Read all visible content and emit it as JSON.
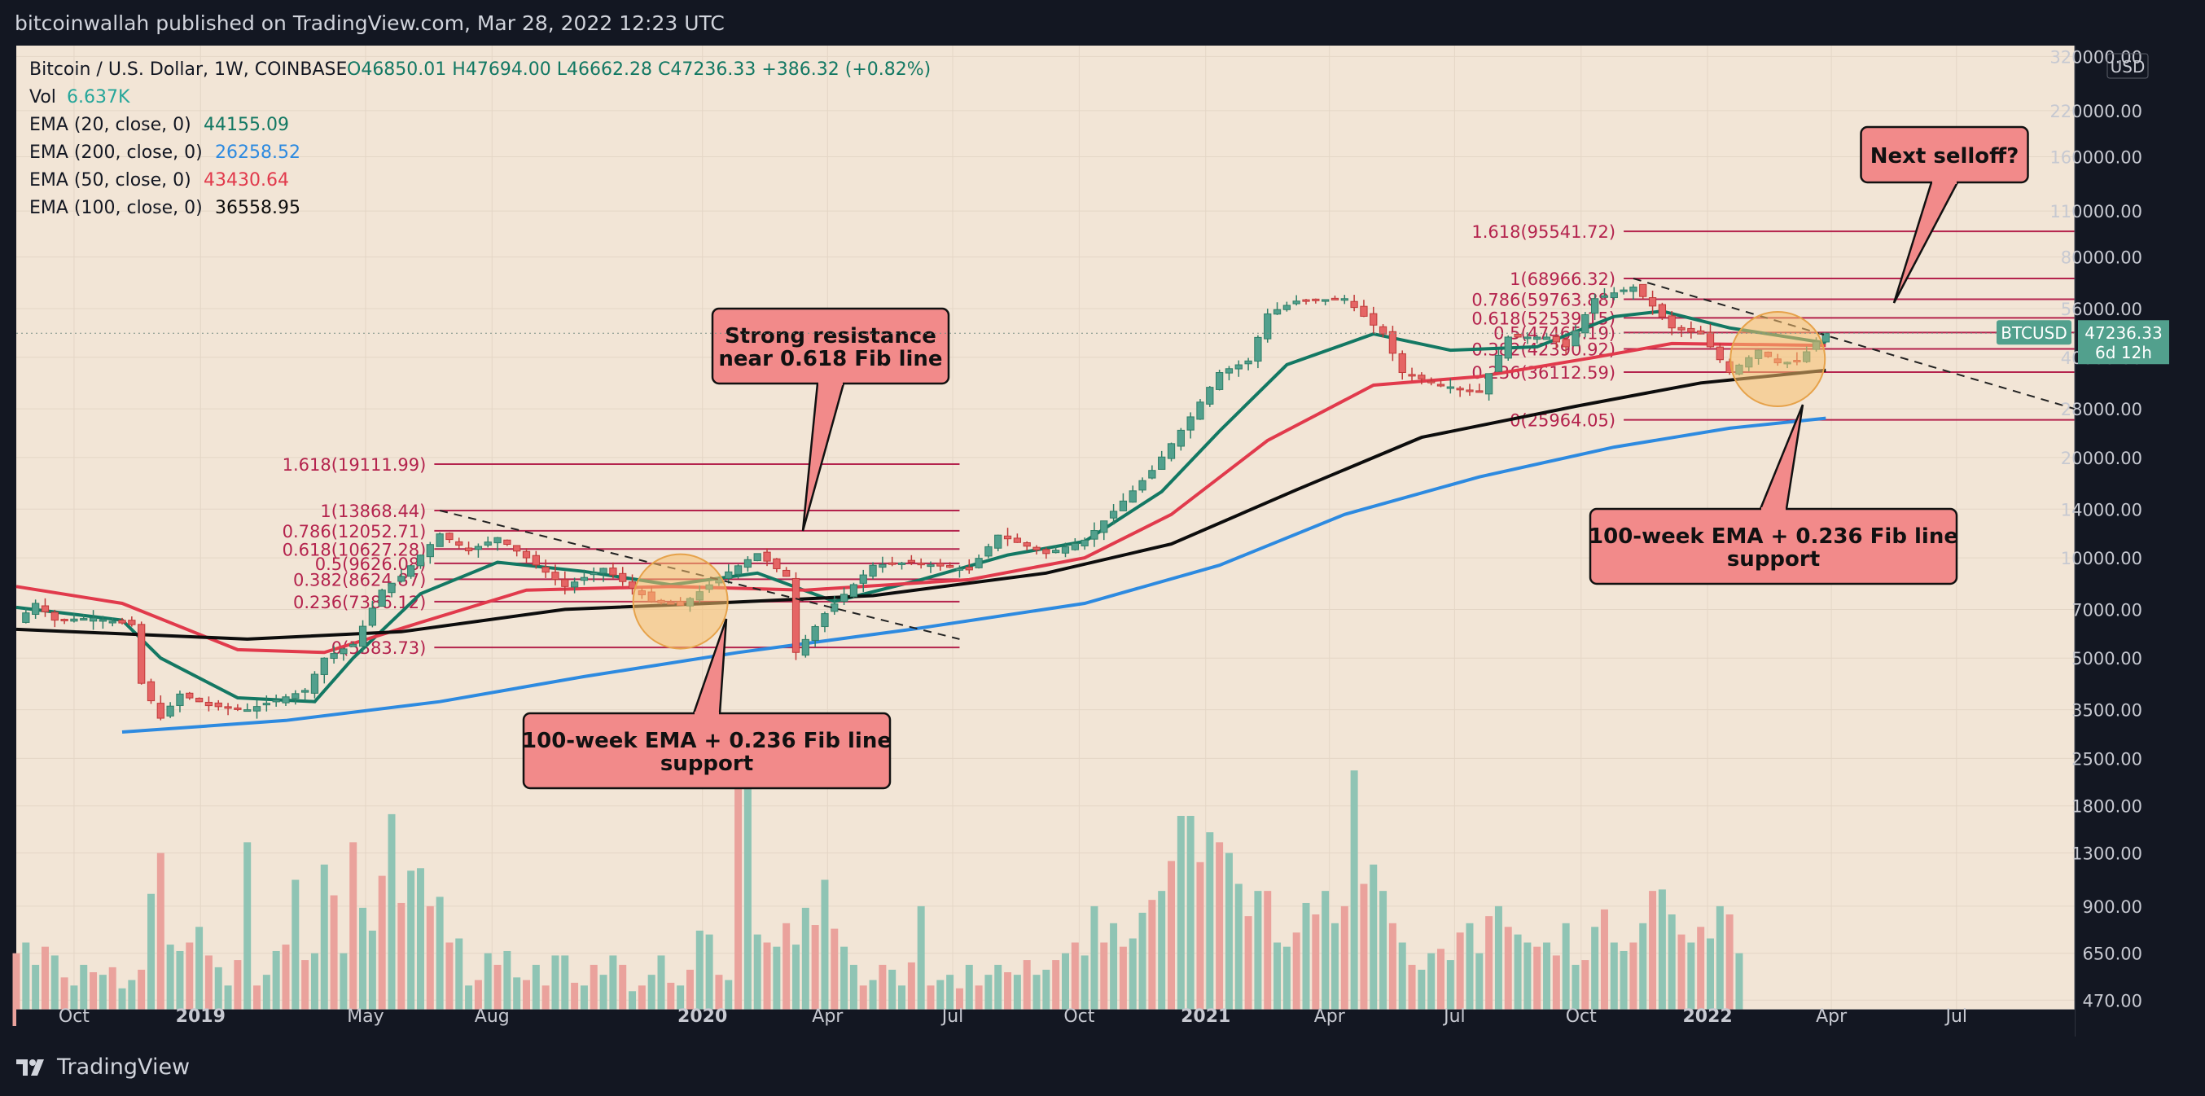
{
  "header": {
    "published": "bitcoinwallah published on TradingView.com, Mar 28, 2022 12:23 UTC"
  },
  "footer": {
    "brand": "TradingView"
  },
  "legend": {
    "symbol": "Bitcoin / U.S. Dollar, 1W, COINBASE",
    "ohlc": "O46850.01 H47694.00 L46662.28 C47236.33 +386.32 (+0.82%)",
    "vol_label": "Vol",
    "vol_value": "6.637K",
    "ema": [
      {
        "label": "EMA (20, close, 0)",
        "value": "44155.09",
        "color": "#137863"
      },
      {
        "label": "EMA (200, close, 0)",
        "value": "26258.52",
        "color": "#2d8ae0"
      },
      {
        "label": "EMA (50, close, 0)",
        "value": "43430.64",
        "color": "#e13a4c"
      },
      {
        "label": "EMA (100, close, 0)",
        "value": "36558.95",
        "color": "#0d0d0d"
      }
    ]
  },
  "price_tag": {
    "symbol": "BTCUSD",
    "price": "47236.33",
    "countdown": "6d 12h"
  },
  "axis": {
    "currency": "USD"
  },
  "annotations": {
    "resistance": [
      "Strong resistance",
      "near 0.618 Fib line"
    ],
    "support_2019": [
      "100-week EMA + 0.236 Fib line",
      "support"
    ],
    "support_2022": [
      "100-week EMA + 0.236 Fib line",
      "support"
    ],
    "selloff": [
      "Next selloff?"
    ]
  },
  "colors": {
    "background": "#f2e5d6",
    "bull": "#52a08d",
    "bear": "#e56565",
    "fib": "#b4234d"
  },
  "chart_data": {
    "type": "candlestick",
    "y_scale": "log",
    "ylim": [
      440,
      345000
    ],
    "y_ticks": [
      {
        "v": 320000,
        "label": "320000.00"
      },
      {
        "v": 220000,
        "label": "220000.00"
      },
      {
        "v": 160000,
        "label": "160000.00"
      },
      {
        "v": 110000,
        "label": "110000.00"
      },
      {
        "v": 80000,
        "label": "80000.00"
      },
      {
        "v": 56000,
        "label": "56000.00"
      },
      {
        "v": 40000,
        "label": "40000.00"
      },
      {
        "v": 28000,
        "label": "28000.00"
      },
      {
        "v": 20000,
        "label": "20000.00"
      },
      {
        "v": 14000,
        "label": "14000.00"
      },
      {
        "v": 10000,
        "label": "10000.00"
      },
      {
        "v": 7000,
        "label": "7000.00"
      },
      {
        "v": 5000,
        "label": "5000.00"
      },
      {
        "v": 3500,
        "label": "3500.00"
      },
      {
        "v": 2500,
        "label": "2500.00"
      },
      {
        "v": 1800,
        "label": "1800.00"
      },
      {
        "v": 1300,
        "label": "1300.00"
      },
      {
        "v": 900,
        "label": "900.00"
      },
      {
        "v": 650,
        "label": "650.00"
      },
      {
        "v": 470,
        "label": "470.00"
      }
    ],
    "x_ticks": [
      {
        "t": "2018-10-01",
        "label": "Oct",
        "bold": false
      },
      {
        "t": "2019-01-01",
        "label": "2019",
        "bold": true
      },
      {
        "t": "2019-05-01",
        "label": "May",
        "bold": false
      },
      {
        "t": "2019-08-01",
        "label": "Aug",
        "bold": false
      },
      {
        "t": "2020-01-01",
        "label": "2020",
        "bold": true
      },
      {
        "t": "2020-04-01",
        "label": "Apr",
        "bold": false
      },
      {
        "t": "2020-07-01",
        "label": "Jul",
        "bold": false
      },
      {
        "t": "2020-10-01",
        "label": "Oct",
        "bold": false
      },
      {
        "t": "2021-01-01",
        "label": "2021",
        "bold": true
      },
      {
        "t": "2021-04-01",
        "label": "Apr",
        "bold": false
      },
      {
        "t": "2021-07-01",
        "label": "Jul",
        "bold": false
      },
      {
        "t": "2021-10-01",
        "label": "Oct",
        "bold": false
      },
      {
        "t": "2022-01-01",
        "label": "2022",
        "bold": true
      },
      {
        "t": "2022-04-01",
        "label": "Apr",
        "bold": false
      },
      {
        "t": "2022-07-01",
        "label": "Jul",
        "bold": false
      }
    ],
    "x_range": [
      "2018-08-20",
      "2022-09-25"
    ],
    "price_path": [
      [
        "2018-08-20",
        6400
      ],
      [
        "2018-09-03",
        7300
      ],
      [
        "2018-09-17",
        6500
      ],
      [
        "2018-10-15",
        6600
      ],
      [
        "2018-11-12",
        6300
      ],
      [
        "2018-11-19",
        4200
      ],
      [
        "2018-12-03",
        3300
      ],
      [
        "2018-12-17",
        3900
      ],
      [
        "2019-01-07",
        3600
      ],
      [
        "2019-02-04",
        3500
      ],
      [
        "2019-03-18",
        4000
      ],
      [
        "2019-04-01",
        5000
      ],
      [
        "2019-04-22",
        5500
      ],
      [
        "2019-05-13",
        8000
      ],
      [
        "2019-05-27",
        8800
      ],
      [
        "2019-06-24",
        11800
      ],
      [
        "2019-07-15",
        10500
      ],
      [
        "2019-08-05",
        11500
      ],
      [
        "2019-08-26",
        10000
      ],
      [
        "2019-09-23",
        8200
      ],
      [
        "2019-10-21",
        9300
      ],
      [
        "2019-11-25",
        7400
      ],
      [
        "2019-12-16",
        7200
      ],
      [
        "2020-01-13",
        8700
      ],
      [
        "2020-02-10",
        10300
      ],
      [
        "2020-03-02",
        8800
      ],
      [
        "2020-03-09",
        5200
      ],
      [
        "2020-03-30",
        6800
      ],
      [
        "2020-05-04",
        9500
      ],
      [
        "2020-06-01",
        9700
      ],
      [
        "2020-07-13",
        9200
      ],
      [
        "2020-08-03",
        11700
      ],
      [
        "2020-09-07",
        10300
      ],
      [
        "2020-10-05",
        11300
      ],
      [
        "2020-10-26",
        13800
      ],
      [
        "2020-11-23",
        18300
      ],
      [
        "2020-12-21",
        26500
      ],
      [
        "2021-01-11",
        36000
      ],
      [
        "2021-02-01",
        39000
      ],
      [
        "2021-02-15",
        54000
      ],
      [
        "2021-03-08",
        59000
      ],
      [
        "2021-04-12",
        60000
      ],
      [
        "2021-05-10",
        47000
      ],
      [
        "2021-05-24",
        36000
      ],
      [
        "2021-06-21",
        33000
      ],
      [
        "2021-07-19",
        31500
      ],
      [
        "2021-08-09",
        46000
      ],
      [
        "2021-09-06",
        46000
      ],
      [
        "2021-09-20",
        43000
      ],
      [
        "2021-10-11",
        60000
      ],
      [
        "2021-11-08",
        65000
      ],
      [
        "2021-11-22",
        57000
      ],
      [
        "2021-12-06",
        49000
      ],
      [
        "2021-12-27",
        47000
      ],
      [
        "2022-01-17",
        36000
      ],
      [
        "2022-02-07",
        42000
      ],
      [
        "2022-02-21",
        38500
      ],
      [
        "2022-03-07",
        38800
      ],
      [
        "2022-03-21",
        44500
      ],
      [
        "2022-03-28",
        47236
      ]
    ],
    "ema_series": [
      {
        "name": "EMA (20, close, 0)",
        "color": "#137863",
        "points": [
          [
            "2018-08-20",
            7100
          ],
          [
            "2018-11-05",
            6500
          ],
          [
            "2018-12-03",
            5000
          ],
          [
            "2019-01-28",
            3800
          ],
          [
            "2019-03-25",
            3700
          ],
          [
            "2019-04-22",
            5000
          ],
          [
            "2019-06-10",
            7800
          ],
          [
            "2019-08-05",
            9700
          ],
          [
            "2019-10-07",
            9100
          ],
          [
            "2019-12-09",
            8300
          ],
          [
            "2020-02-10",
            9000
          ],
          [
            "2020-04-06",
            7400
          ],
          [
            "2020-06-08",
            8600
          ],
          [
            "2020-08-10",
            10200
          ],
          [
            "2020-10-05",
            11200
          ],
          [
            "2020-11-30",
            15800
          ],
          [
            "2021-01-11",
            24000
          ],
          [
            "2021-03-01",
            38000
          ],
          [
            "2021-05-03",
            47000
          ],
          [
            "2021-06-28",
            42000
          ],
          [
            "2021-08-30",
            43000
          ],
          [
            "2021-10-25",
            53000
          ],
          [
            "2021-11-29",
            55000
          ],
          [
            "2022-01-17",
            49000
          ],
          [
            "2022-03-28",
            44155
          ]
        ]
      },
      {
        "name": "EMA (50, close, 0)",
        "color": "#e13a4c",
        "points": [
          [
            "2018-08-20",
            8200
          ],
          [
            "2018-11-05",
            7300
          ],
          [
            "2019-01-28",
            5300
          ],
          [
            "2019-04-01",
            5200
          ],
          [
            "2019-06-10",
            6400
          ],
          [
            "2019-08-26",
            8000
          ],
          [
            "2019-12-09",
            8200
          ],
          [
            "2020-03-16",
            8000
          ],
          [
            "2020-07-13",
            8600
          ],
          [
            "2020-10-05",
            10000
          ],
          [
            "2020-12-07",
            13500
          ],
          [
            "2021-02-15",
            22500
          ],
          [
            "2021-05-03",
            33000
          ],
          [
            "2021-07-19",
            35000
          ],
          [
            "2021-10-11",
            40000
          ],
          [
            "2021-12-06",
            44000
          ],
          [
            "2022-03-28",
            43430
          ]
        ]
      },
      {
        "name": "EMA (100, close, 0)",
        "color": "#0d0d0d",
        "points": [
          [
            "2018-08-20",
            6100
          ],
          [
            "2019-02-04",
            5700
          ],
          [
            "2019-05-27",
            6000
          ],
          [
            "2019-09-23",
            7000
          ],
          [
            "2020-01-06",
            7300
          ],
          [
            "2020-05-04",
            7700
          ],
          [
            "2020-09-07",
            9000
          ],
          [
            "2020-12-07",
            11000
          ],
          [
            "2021-03-08",
            16000
          ],
          [
            "2021-06-07",
            23000
          ],
          [
            "2021-09-27",
            28500
          ],
          [
            "2021-12-27",
            33500
          ],
          [
            "2022-03-28",
            36559
          ]
        ]
      },
      {
        "name": "EMA (200, close, 0)",
        "color": "#2d8ae0",
        "points": [
          [
            "2018-11-05",
            3000
          ],
          [
            "2019-03-04",
            3250
          ],
          [
            "2019-06-24",
            3700
          ],
          [
            "2019-10-07",
            4400
          ],
          [
            "2020-01-27",
            5200
          ],
          [
            "2020-06-01",
            6100
          ],
          [
            "2020-10-05",
            7300
          ],
          [
            "2021-01-11",
            9500
          ],
          [
            "2021-04-12",
            13500
          ],
          [
            "2021-07-19",
            17500
          ],
          [
            "2021-10-25",
            21500
          ],
          [
            "2022-01-17",
            24500
          ],
          [
            "2022-03-28",
            26259
          ]
        ]
      }
    ],
    "fib_2019": {
      "x_start": "2019-06-20",
      "x_end": "2020-07-06",
      "levels": [
        {
          "ratio": "1.618",
          "value": 19111.99,
          "label": "1.618(19111.99)"
        },
        {
          "ratio": "1",
          "value": 13868.44,
          "label": "1(13868.44)"
        },
        {
          "ratio": "0.786",
          "value": 12052.71,
          "label": "0.786(12052.71)"
        },
        {
          "ratio": "0.618",
          "value": 10627.28,
          "label": "0.618(10627.28)"
        },
        {
          "ratio": "0.5",
          "value": 9626.08,
          "label": "0.5(9626.08)"
        },
        {
          "ratio": "0.382",
          "value": 8624.87,
          "label": "0.382(8624.87)"
        },
        {
          "ratio": "0.236",
          "value": 7386.12,
          "label": "0.236(7386.12)"
        },
        {
          "ratio": "0",
          "value": 5383.73,
          "label": "0(5383.73)"
        }
      ]
    },
    "fib_2022": {
      "x_start": "2021-11-01",
      "x_end": "2022-09-25",
      "levels": [
        {
          "ratio": "1.618",
          "value": 95541.72,
          "label": "1.618(95541.72)"
        },
        {
          "ratio": "1",
          "value": 68966.32,
          "label": "1(68966.32)"
        },
        {
          "ratio": "0.786",
          "value": 59763.88,
          "label": "0.786(59763.88)"
        },
        {
          "ratio": "0.618",
          "value": 52539.15,
          "label": "0.618(52539.15)"
        },
        {
          "ratio": "0.5",
          "value": 47465.19,
          "label": "0.5(47465.19)"
        },
        {
          "ratio": "0.382",
          "value": 42390.92,
          "label": "0.382(42390.92)"
        },
        {
          "ratio": "0.236",
          "value": 36112.59,
          "label": "0.236(36112.59)"
        },
        {
          "ratio": "0",
          "value": 25964.05,
          "label": "0(25964.05)"
        }
      ]
    },
    "trendlines": [
      {
        "from": [
          "2019-06-24",
          13868
        ],
        "to": [
          "2020-07-06",
          5700
        ]
      },
      {
        "from": [
          "2021-11-08",
          68966
        ],
        "to": [
          "2022-09-25",
          28000
        ]
      }
    ],
    "volume": [
      650,
      700,
      600,
      680,
      640,
      550,
      520,
      600,
      570,
      560,
      590,
      510,
      540,
      580,
      980,
      1300,
      690,
      660,
      700,
      780,
      640,
      590,
      520,
      620,
      1400,
      520,
      560,
      660,
      690,
      1080,
      620,
      650,
      1200,
      970,
      650,
      1400,
      890,
      760,
      1110,
      1700,
      920,
      1150,
      1170,
      900,
      960,
      700,
      720,
      520,
      540,
      650,
      600,
      660,
      550,
      540,
      600,
      520,
      640,
      640,
      530,
      520,
      600,
      560,
      640,
      600,
      500,
      520,
      560,
      640,
      530,
      520,
      580,
      760,
      740,
      560,
      540,
      2600,
      2300,
      740,
      700,
      680,
      800,
      690,
      890,
      790,
      1080,
      770,
      680,
      600,
      520,
      540,
      600,
      580,
      520,
      610,
      900,
      520,
      540,
      560,
      510,
      600,
      520,
      560,
      600,
      570,
      560,
      620,
      560,
      580,
      620,
      650,
      700,
      640,
      900,
      700,
      800,
      680,
      720,
      860,
      940,
      1000,
      1230,
      1680,
      1680,
      1220,
      1500,
      1400,
      1300,
      1050,
      840,
      1000,
      1000,
      700,
      680,
      750,
      920,
      850,
      1000,
      800,
      900,
      2300,
      1050,
      1200,
      1000,
      800,
      700,
      600,
      580,
      650,
      670,
      620,
      750,
      800,
      650,
      840,
      900,
      780,
      740,
      700,
      680,
      700,
      640,
      800,
      600,
      620,
      780,
      880,
      700,
      660,
      700,
      800,
      1000,
      1010,
      850,
      740,
      700,
      780,
      720,
      900,
      850,
      650
    ]
  }
}
